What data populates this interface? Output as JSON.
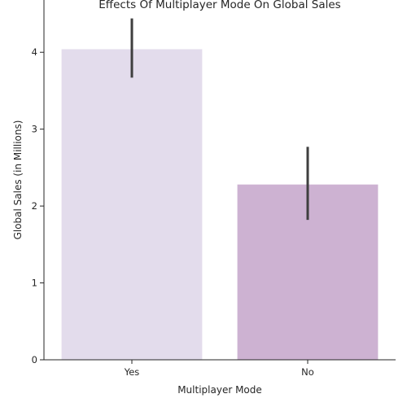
{
  "chart_data": {
    "type": "bar",
    "title": "Effects Of Multiplayer Mode On Global Sales",
    "xlabel": "Multiplayer Mode",
    "ylabel": "Global Sales (in Millions)",
    "categories": [
      "Yes",
      "No"
    ],
    "values": [
      4.04,
      2.28
    ],
    "error_low": [
      3.67,
      1.82
    ],
    "error_high": [
      4.44,
      2.77
    ],
    "ylim": [
      0,
      4.68
    ],
    "yticks": [
      0,
      1,
      2,
      3,
      4
    ],
    "grid": false,
    "colors": {
      "bars": [
        "#e3dcec",
        "#cdb2d2"
      ],
      "error_bars": "#3f3f3f",
      "axis": "#262626"
    }
  }
}
